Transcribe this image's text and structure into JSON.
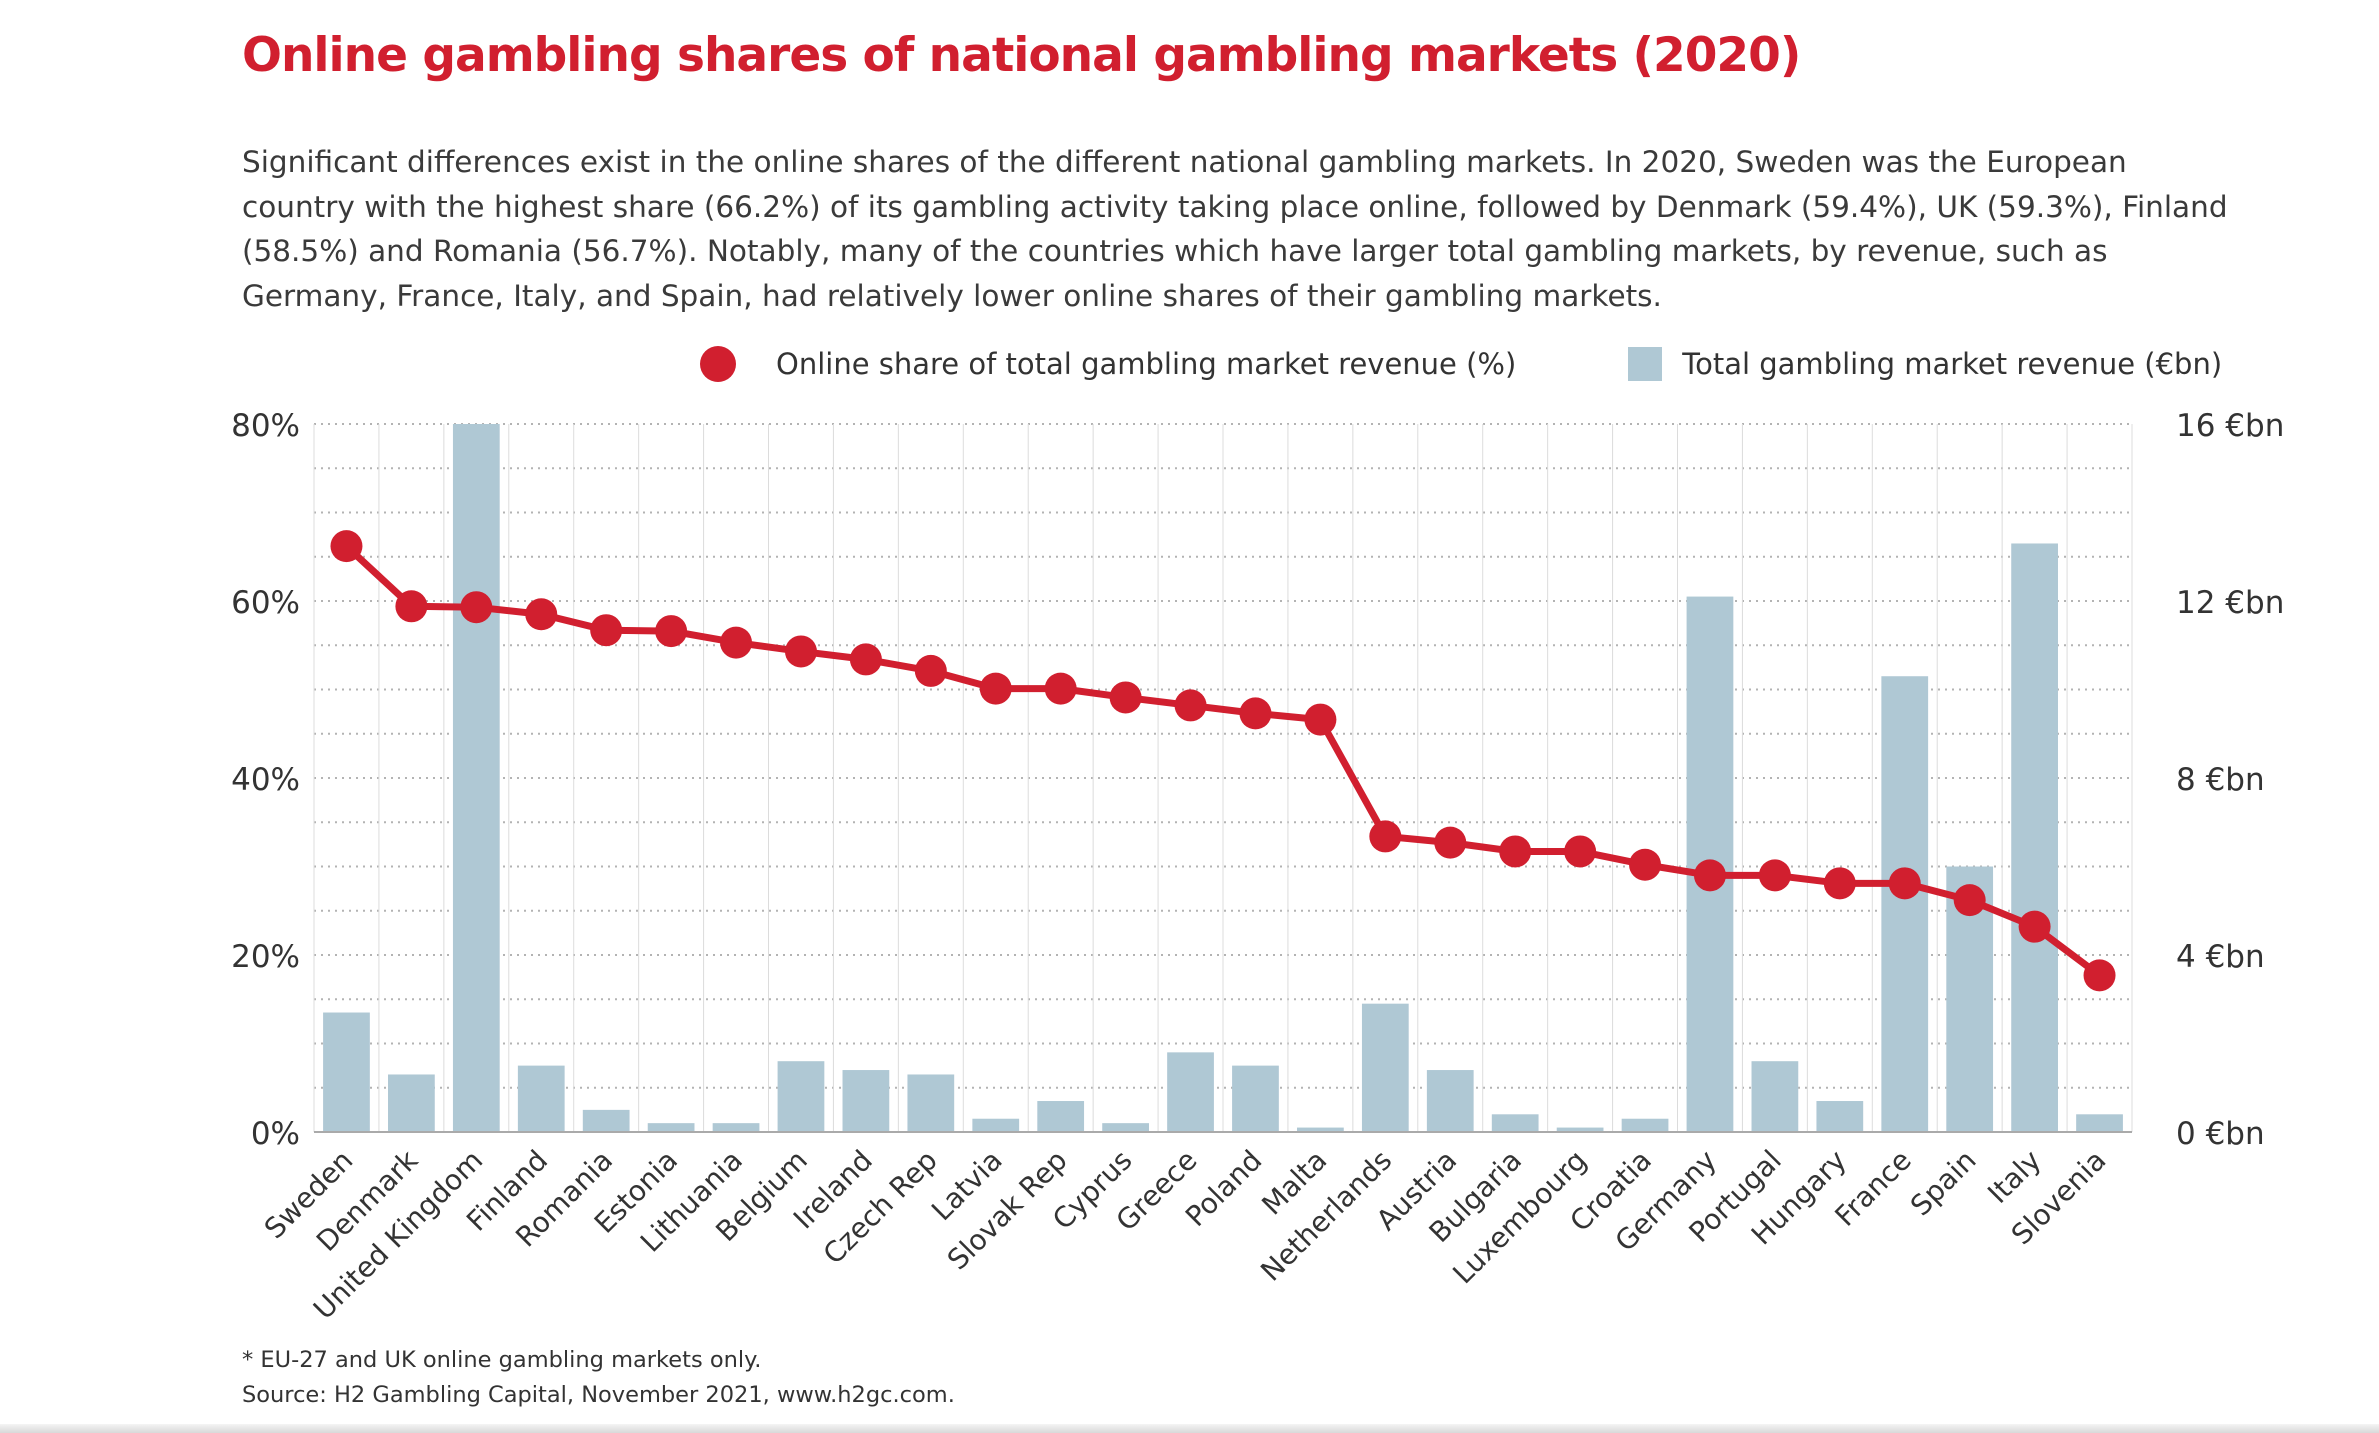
{
  "title": "Online gambling shares of national gambling markets (2020)",
  "description": "Significant differences exist in the online shares of the different national gambling markets. In 2020, Sweden was the European country with the highest share (66.2%) of its gambling activity taking place online, followed by Denmark (59.4%), UK (59.3%), Finland (58.5%) and Romania (56.7%). Notably, many of the countries which have larger total gambling markets, by revenue, such as Germany, France, Italy, and Spain, had relatively lower online shares of their gambling markets.",
  "footnote": "* EU-27 and UK online gambling markets only.",
  "source": "Source: H2 Gambling Capital, November 2021, www.h2gc.com.",
  "legend": {
    "line_label": "Online share of total gambling market revenue (%)",
    "bar_label": "Total gambling market revenue (€bn)"
  },
  "colors": {
    "title": "#d11f2f",
    "line": "#d11f2f",
    "bars": "#afc8d4",
    "grid": "#b3b3b3"
  },
  "chart_data": {
    "type": "bar",
    "categories": [
      "Sweden",
      "Denmark",
      "United Kingdom",
      "Finland",
      "Romania",
      "Estonia",
      "Lithuania",
      "Belgium",
      "Ireland",
      "Czech Rep",
      "Latvia",
      "Slovak Rep",
      "Cyprus",
      "Greece",
      "Poland",
      "Malta",
      "Netherlands",
      "Austria",
      "Bulgaria",
      "Luxembourg",
      "Croatia",
      "Germany",
      "Portugal",
      "Hungary",
      "France",
      "Spain",
      "Italy",
      "Slovenia"
    ],
    "series": [
      {
        "name": "Online share of total gambling market revenue (%)",
        "type": "line",
        "axis": "left",
        "values": [
          66.2,
          59.4,
          59.3,
          58.5,
          56.7,
          56.6,
          55.3,
          54.3,
          53.4,
          52.1,
          50.1,
          50.1,
          49.1,
          48.2,
          47.3,
          46.6,
          33.4,
          32.7,
          31.7,
          31.7,
          30.2,
          29.0,
          29.0,
          28.1,
          28.1,
          26.2,
          23.2,
          17.7
        ]
      },
      {
        "name": "Total gambling market revenue (€bn)",
        "type": "bar",
        "axis": "right",
        "values": [
          2.7,
          1.3,
          16.0,
          1.5,
          0.5,
          0.2,
          0.2,
          1.6,
          1.4,
          1.3,
          0.3,
          0.7,
          0.2,
          1.8,
          1.5,
          0.1,
          2.9,
          1.4,
          0.4,
          0.1,
          0.3,
          12.1,
          1.6,
          0.7,
          10.3,
          6.0,
          13.3,
          0.4
        ]
      }
    ],
    "y_left": {
      "ticks": [
        "0%",
        "20%",
        "40%",
        "60%",
        "80%"
      ],
      "ylim": [
        0,
        80
      ]
    },
    "y_right": {
      "ticks": [
        "0 €bn",
        "4 €bn",
        "8 €bn",
        "12 €bn",
        "16 €bn"
      ],
      "ylim": [
        0,
        16
      ]
    },
    "grid": true,
    "legend_position": "top-right"
  }
}
